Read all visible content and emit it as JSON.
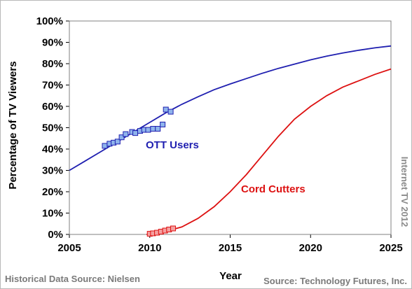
{
  "chart_data": {
    "type": "line",
    "xlabel": "Year",
    "ylabel": "Percentage of TV Viewers",
    "xlim": [
      2005,
      2025
    ],
    "ylim": [
      0,
      100
    ],
    "x_ticks": [
      "2005",
      "2010",
      "2015",
      "2020",
      "2025"
    ],
    "y_ticks": [
      "0%",
      "10%",
      "20%",
      "30%",
      "40%",
      "50%",
      "60%",
      "70%",
      "80%",
      "90%",
      "100%"
    ],
    "grid": false,
    "series": [
      {
        "name": "OTT Users",
        "color": "#1f1fb0",
        "marker_color": "#8fb4ec",
        "forecast": [
          [
            2005,
            30
          ],
          [
            2006,
            34.5
          ],
          [
            2007,
            39
          ],
          [
            2008,
            43.5
          ],
          [
            2009,
            48
          ],
          [
            2010,
            52.5
          ],
          [
            2011,
            57
          ],
          [
            2012,
            61
          ],
          [
            2013,
            64.5
          ],
          [
            2014,
            67.8
          ],
          [
            2015,
            70.5
          ],
          [
            2016,
            73
          ],
          [
            2017,
            75.5
          ],
          [
            2018,
            77.8
          ],
          [
            2019,
            79.8
          ],
          [
            2020,
            81.8
          ],
          [
            2021,
            83.5
          ],
          [
            2022,
            85
          ],
          [
            2023,
            86.3
          ],
          [
            2024,
            87.4
          ],
          [
            2025,
            88.3
          ]
        ],
        "historical": [
          [
            2007.2,
            41.5
          ],
          [
            2007.5,
            42.5
          ],
          [
            2007.75,
            43
          ],
          [
            2008.0,
            43.5
          ],
          [
            2008.25,
            45.5
          ],
          [
            2008.5,
            47
          ],
          [
            2008.9,
            48
          ],
          [
            2009.1,
            47.5
          ],
          [
            2009.4,
            48.5
          ],
          [
            2009.65,
            49
          ],
          [
            2009.9,
            49
          ],
          [
            2010.2,
            49.5
          ],
          [
            2010.5,
            49.5
          ],
          [
            2010.8,
            51.5
          ],
          [
            2011.0,
            58.5
          ],
          [
            2011.3,
            57.5
          ]
        ]
      },
      {
        "name": "Cord Cutters",
        "color": "#dd1111",
        "marker_color": "#f5a0a0",
        "forecast": [
          [
            2009.8,
            0
          ],
          [
            2010.5,
            0.8
          ],
          [
            2011,
            1.5
          ],
          [
            2012,
            3.5
          ],
          [
            2013,
            7.5
          ],
          [
            2014,
            13
          ],
          [
            2015,
            20
          ],
          [
            2016,
            28
          ],
          [
            2017,
            37
          ],
          [
            2018,
            46
          ],
          [
            2019,
            54
          ],
          [
            2020,
            60
          ],
          [
            2021,
            65
          ],
          [
            2022,
            69
          ],
          [
            2023,
            72
          ],
          [
            2024,
            75
          ],
          [
            2025,
            77.5
          ]
        ],
        "historical": [
          [
            2010.0,
            0.3
          ],
          [
            2010.2,
            0.5
          ],
          [
            2010.45,
            0.8
          ],
          [
            2010.7,
            1.3
          ],
          [
            2010.95,
            1.8
          ],
          [
            2011.2,
            2.3
          ],
          [
            2011.45,
            2.8
          ]
        ]
      }
    ],
    "annotations": {
      "watermark": "Internet TV  2012",
      "source_left": "Historical Data Source: Nielsen",
      "source_right": "Source: Technology Futures, Inc."
    }
  }
}
